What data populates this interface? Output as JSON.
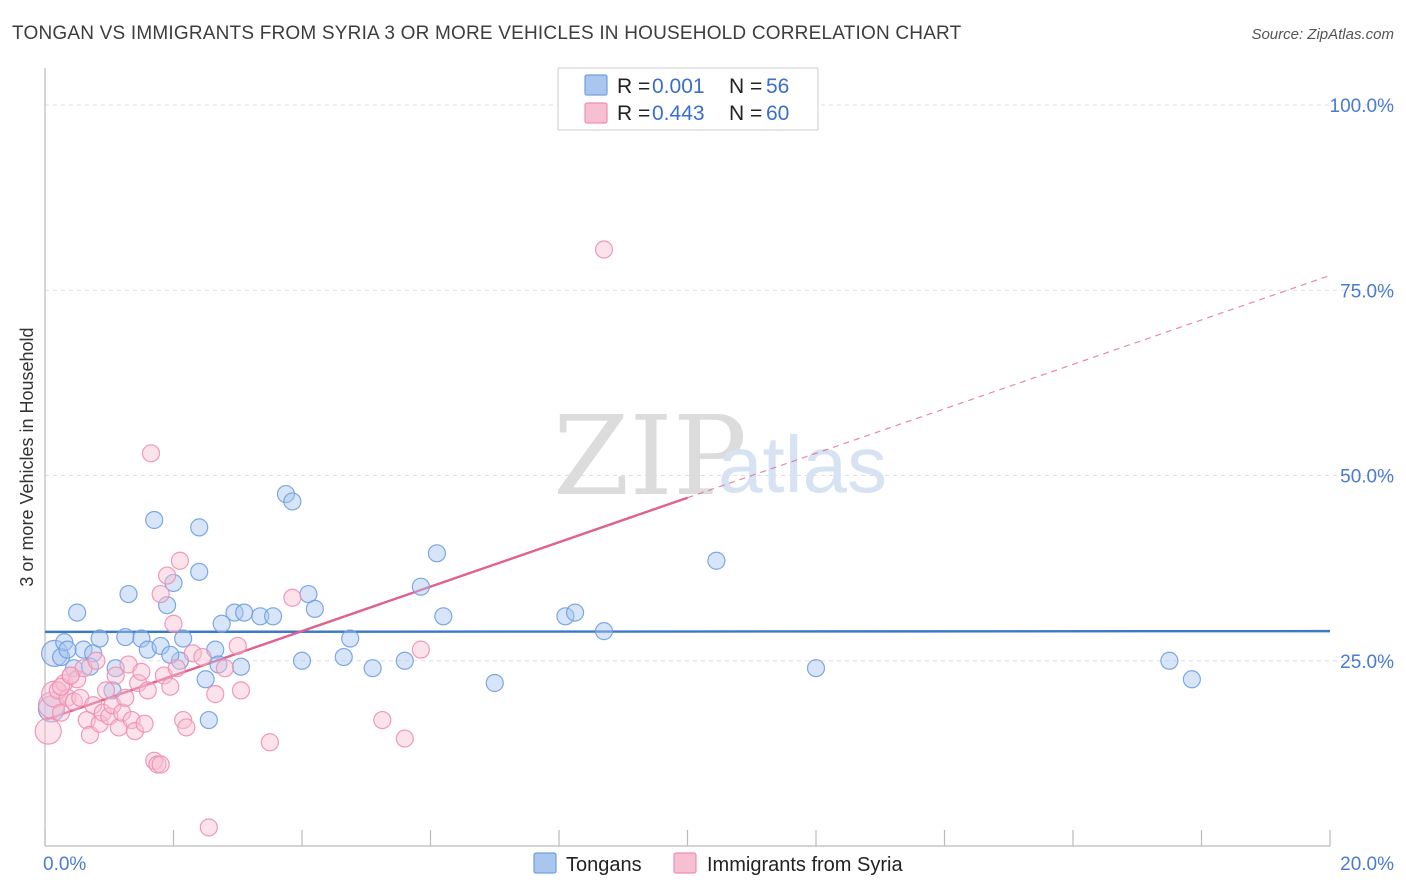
{
  "title": "TONGAN VS IMMIGRANTS FROM SYRIA 3 OR MORE VEHICLES IN HOUSEHOLD CORRELATION CHART",
  "source": "Source: ZipAtlas.com",
  "watermark": {
    "part1": "ZIP",
    "part2": "atlas"
  },
  "legend": {
    "rows": [
      {
        "r_label": "R =",
        "r_value": "0.001",
        "n_label": "N =",
        "n_value": "56"
      },
      {
        "r_label": "R =",
        "r_value": "0.443",
        "n_label": "N =",
        "n_value": "60"
      }
    ]
  },
  "bottom_legend": [
    "Tongans",
    "Immigrants from Syria"
  ],
  "colors": {
    "blue": "#6f9fe0",
    "blue_line": "#3a78c9",
    "pink": "#ef8fb0",
    "pink_line": "#e0608e",
    "blue_fill": "#a9c6ef",
    "pink_fill": "#f7bfd2"
  },
  "chart_data": {
    "type": "scatter",
    "title": "TONGAN VS IMMIGRANTS FROM SYRIA 3 OR MORE VEHICLES IN HOUSEHOLD CORRELATION CHART",
    "xlabel": "",
    "ylabel": "3 or more Vehicles in Household",
    "xlim": [
      0,
      20
    ],
    "ylim": [
      0,
      105
    ],
    "x_ticks": [
      0,
      2,
      4,
      6,
      8,
      10,
      12,
      14,
      16,
      18,
      20
    ],
    "x_tick_labels": [
      "0.0%",
      "20.0%"
    ],
    "y_ticks": [
      25,
      50,
      75,
      100
    ],
    "y_tick_labels": [
      "25.0%",
      "50.0%",
      "75.0%",
      "100.0%"
    ],
    "series": [
      {
        "name": "Tongans",
        "color": "#6f9fe0",
        "trend": {
          "x0": 0,
          "y0": 28.9,
          "x1": 20,
          "y1": 29.0,
          "dashed_from": null
        },
        "points": [
          [
            0.1,
            18.5
          ],
          [
            0.15,
            26
          ],
          [
            0.25,
            25.5
          ],
          [
            0.3,
            27.5
          ],
          [
            0.45,
            24
          ],
          [
            0.5,
            31.5
          ],
          [
            0.6,
            26.5
          ],
          [
            0.75,
            26
          ],
          [
            0.85,
            28
          ],
          [
            1.05,
            21
          ],
          [
            1.1,
            24
          ],
          [
            1.3,
            34
          ],
          [
            1.5,
            28
          ],
          [
            1.6,
            26.5
          ],
          [
            1.7,
            44
          ],
          [
            1.8,
            27
          ],
          [
            1.9,
            32.5
          ],
          [
            2.0,
            35.5
          ],
          [
            2.1,
            25
          ],
          [
            2.15,
            28
          ],
          [
            2.4,
            43
          ],
          [
            2.4,
            37
          ],
          [
            2.5,
            22.5
          ],
          [
            2.55,
            17
          ],
          [
            2.65,
            26.5
          ],
          [
            2.7,
            24.5
          ],
          [
            2.75,
            30
          ],
          [
            2.95,
            31.5
          ],
          [
            3.1,
            31.5
          ],
          [
            3.35,
            31
          ],
          [
            3.55,
            31
          ],
          [
            3.75,
            47.5
          ],
          [
            3.85,
            46.5
          ],
          [
            4.0,
            25
          ],
          [
            4.1,
            34
          ],
          [
            4.2,
            32
          ],
          [
            4.65,
            25.5
          ],
          [
            4.75,
            28
          ],
          [
            5.1,
            24
          ],
          [
            5.6,
            25
          ],
          [
            5.85,
            35
          ],
          [
            6.1,
            39.5
          ],
          [
            6.2,
            31
          ],
          [
            7.0,
            22
          ],
          [
            8.1,
            31
          ],
          [
            8.25,
            31.5
          ],
          [
            8.7,
            29
          ],
          [
            10.45,
            38.5
          ],
          [
            12.0,
            24
          ],
          [
            17.5,
            25
          ],
          [
            17.85,
            22.5
          ],
          [
            0.35,
            26.5
          ],
          [
            1.25,
            28.2
          ],
          [
            0.7,
            24.2
          ],
          [
            1.95,
            25.8
          ],
          [
            3.05,
            24.2
          ]
        ]
      },
      {
        "name": "Immigrants from Syria",
        "color": "#ef8fb0",
        "trend": {
          "x0": 0,
          "y0": 17,
          "x1": 20,
          "y1": 77,
          "dashed_from": 10
        },
        "points": [
          [
            0.05,
            15.5
          ],
          [
            0.1,
            19
          ],
          [
            0.15,
            20.5
          ],
          [
            0.2,
            21
          ],
          [
            0.25,
            18
          ],
          [
            0.3,
            22
          ],
          [
            0.35,
            20
          ],
          [
            0.4,
            23
          ],
          [
            0.45,
            19.5
          ],
          [
            0.5,
            22.5
          ],
          [
            0.55,
            20
          ],
          [
            0.6,
            24
          ],
          [
            0.65,
            17
          ],
          [
            0.7,
            15
          ],
          [
            0.75,
            19
          ],
          [
            0.8,
            25
          ],
          [
            0.85,
            16.5
          ],
          [
            0.9,
            18
          ],
          [
            0.95,
            21
          ],
          [
            1.0,
            17.5
          ],
          [
            1.05,
            19
          ],
          [
            1.1,
            23
          ],
          [
            1.15,
            16
          ],
          [
            1.2,
            18
          ],
          [
            1.25,
            20
          ],
          [
            1.3,
            24.5
          ],
          [
            1.35,
            17
          ],
          [
            1.4,
            15.5
          ],
          [
            1.45,
            22
          ],
          [
            1.5,
            23.5
          ],
          [
            1.55,
            16.5
          ],
          [
            1.6,
            21
          ],
          [
            1.65,
            53
          ],
          [
            1.7,
            11.5
          ],
          [
            1.75,
            11
          ],
          [
            1.8,
            34
          ],
          [
            1.85,
            23
          ],
          [
            1.9,
            36.5
          ],
          [
            1.95,
            21.5
          ],
          [
            2.0,
            30
          ],
          [
            2.05,
            24
          ],
          [
            2.1,
            38.5
          ],
          [
            2.15,
            17
          ],
          [
            2.2,
            16
          ],
          [
            2.3,
            26
          ],
          [
            2.45,
            25.5
          ],
          [
            2.55,
            2.5
          ],
          [
            2.65,
            20.5
          ],
          [
            2.8,
            24
          ],
          [
            3.0,
            27
          ],
          [
            3.05,
            21
          ],
          [
            3.5,
            14
          ],
          [
            3.85,
            33.5
          ],
          [
            5.25,
            17
          ],
          [
            5.6,
            14.5
          ],
          [
            5.85,
            26.5
          ],
          [
            8.7,
            80.5
          ],
          [
            0.25,
            21.5
          ],
          [
            1.8,
            11
          ],
          [
            0.4,
            23
          ]
        ]
      }
    ]
  }
}
